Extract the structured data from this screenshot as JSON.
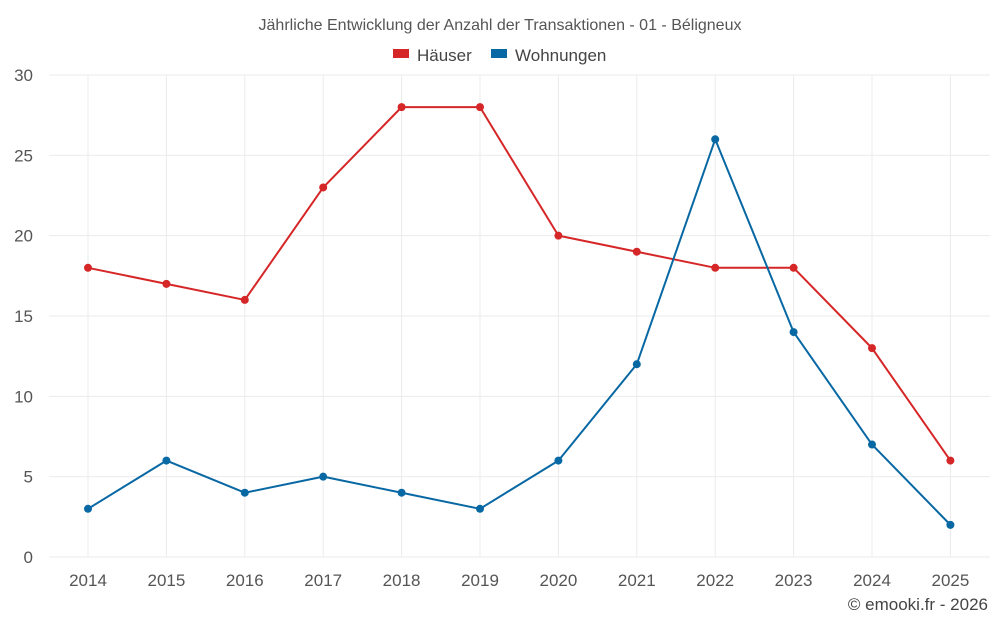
{
  "chart_data": {
    "type": "line",
    "title": "Jährliche Entwicklung der Anzahl der Transaktionen - 01 - Béligneux",
    "categories": [
      "2014",
      "2015",
      "2016",
      "2017",
      "2018",
      "2019",
      "2020",
      "2021",
      "2022",
      "2023",
      "2024",
      "2025"
    ],
    "series": [
      {
        "name": "Häuser",
        "color": "#d62728",
        "values": [
          18,
          17,
          16,
          23,
          28,
          28,
          20,
          19,
          18,
          18,
          13,
          6
        ]
      },
      {
        "name": "Wohnungen",
        "color": "#0868a3",
        "values": [
          3,
          6,
          4,
          5,
          4,
          3,
          6,
          12,
          26,
          14,
          7,
          2
        ]
      }
    ],
    "ylim": [
      0,
      30
    ],
    "yticks": [
      0,
      5,
      10,
      15,
      20,
      25,
      30
    ],
    "xlabel": "",
    "ylabel": "",
    "grid": true,
    "legend": "top-center"
  },
  "credit": "© emooki.fr - 2026"
}
